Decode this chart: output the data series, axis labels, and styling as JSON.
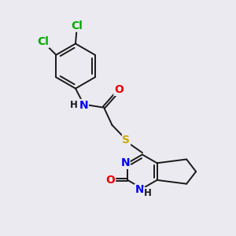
{
  "background_color": "#eaeaf0",
  "bond_color": "#1a1a1a",
  "atom_colors": {
    "N": "#0000ee",
    "O": "#ee0000",
    "S": "#ccaa00",
    "Cl": "#00aa00",
    "C": "#1a1a1a",
    "H": "#1a1a1a"
  },
  "font_size_atoms": 10,
  "font_size_small": 8.5,
  "lw": 1.4
}
